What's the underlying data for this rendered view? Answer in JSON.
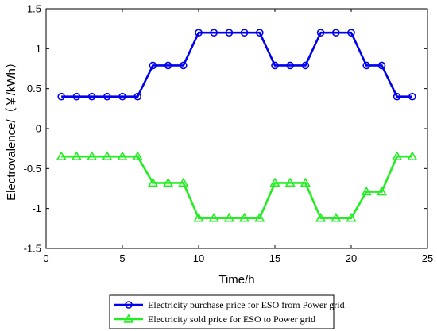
{
  "chart_data": {
    "type": "line",
    "xlabel": "Time/h",
    "ylabel": "Electrovalence/（￥/kWh）",
    "xlim": [
      0,
      25
    ],
    "ylim": [
      -1.5,
      1.5
    ],
    "xticks": [
      0,
      5,
      10,
      15,
      20,
      25
    ],
    "yticks": [
      -1.5,
      -1,
      -0.5,
      0,
      0.5,
      1,
      1.5
    ],
    "ytick_labels": [
      "-1.5",
      "-1",
      "-0.5",
      "0",
      "0.5",
      "1",
      "1.5"
    ],
    "grid": false,
    "legend_position": "bottom",
    "x": [
      1,
      2,
      3,
      4,
      5,
      6,
      7,
      8,
      9,
      10,
      11,
      12,
      13,
      14,
      15,
      16,
      17,
      18,
      19,
      20,
      21,
      22,
      23,
      24
    ],
    "series": [
      {
        "name": "Electricity purchase price for ESO from Power grid",
        "color": "#0000ee",
        "marker": "circle",
        "values": [
          0.4,
          0.4,
          0.4,
          0.4,
          0.4,
          0.4,
          0.79,
          0.79,
          0.79,
          1.2,
          1.2,
          1.2,
          1.2,
          1.2,
          0.79,
          0.79,
          0.79,
          1.2,
          1.2,
          1.2,
          0.79,
          0.79,
          0.4,
          0.4
        ]
      },
      {
        "name": "Electricity sold price for ESO to Power grid",
        "color": "#22ee22",
        "marker": "triangle",
        "values": [
          -0.35,
          -0.35,
          -0.35,
          -0.35,
          -0.35,
          -0.35,
          -0.68,
          -0.68,
          -0.68,
          -1.12,
          -1.12,
          -1.12,
          -1.12,
          -1.12,
          -0.68,
          -0.68,
          -0.68,
          -1.12,
          -1.12,
          -1.12,
          -0.79,
          -0.79,
          -0.35,
          -0.35
        ]
      }
    ]
  }
}
